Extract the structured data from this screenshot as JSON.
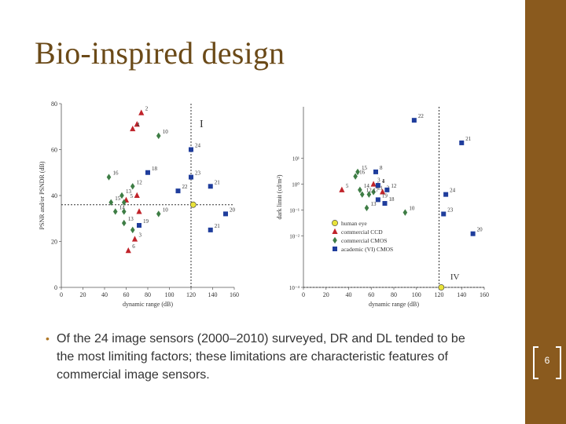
{
  "slide": {
    "title": "Bio-inspired design",
    "bullet": "Of the 24 image sensors (2000–2010) surveyed, DR and DL tended to be the most limiting factors; these limitations are characteristic features of commercial image sensors.",
    "page_number": "6"
  },
  "colors": {
    "title": "#6b4a18",
    "side_band": "#8a5a1e",
    "ccd": "#c0232a",
    "cmos": "#3e7d45",
    "vi_cmos": "#1f3d9c",
    "human_eye": "#e8e23a"
  },
  "chart_data": [
    {
      "type": "scatter",
      "title": "",
      "panel_label": "I",
      "xlabel": "dynamic range (dB)",
      "ylabel": "PSNR and/or PSNDR (dB)",
      "xlim": [
        0,
        160
      ],
      "ylim": [
        0,
        80
      ],
      "xticks": [
        "0",
        "20",
        "40",
        "60",
        "80",
        "100",
        "120",
        "140",
        "160"
      ],
      "yticks": [
        "0",
        "20",
        "40",
        "60",
        "80"
      ],
      "series": [
        {
          "name": "human eye",
          "marker": "circle",
          "points": [
            {
              "x": 122,
              "y": 36,
              "label": ""
            }
          ]
        },
        {
          "name": "commercial CCD",
          "marker": "triangle",
          "points": [
            {
              "x": 74,
              "y": 76,
              "label": "2"
            },
            {
              "x": 70,
              "y": 71,
              "label": ""
            },
            {
              "x": 66,
              "y": 69,
              "label": "4"
            },
            {
              "x": 70,
              "y": 40,
              "label": ""
            },
            {
              "x": 60,
              "y": 38,
              "label": "5"
            },
            {
              "x": 72,
              "y": 33,
              "label": ""
            },
            {
              "x": 68,
              "y": 21,
              "label": "3"
            },
            {
              "x": 62,
              "y": 16,
              "label": "6"
            }
          ]
        },
        {
          "name": "commercial CMOS",
          "marker": "diamond",
          "points": [
            {
              "x": 90,
              "y": 66,
              "label": "10"
            },
            {
              "x": 44,
              "y": 48,
              "label": "16"
            },
            {
              "x": 66,
              "y": 44,
              "label": "12"
            },
            {
              "x": 56,
              "y": 40,
              "label": "13"
            },
            {
              "x": 46,
              "y": 37,
              "label": "15"
            },
            {
              "x": 58,
              "y": 37,
              "label": ""
            },
            {
              "x": 50,
              "y": 33,
              "label": "14"
            },
            {
              "x": 58,
              "y": 33,
              "label": ""
            },
            {
              "x": 90,
              "y": 32,
              "label": "10"
            },
            {
              "x": 58,
              "y": 28,
              "label": "13"
            },
            {
              "x": 66,
              "y": 25,
              "label": ""
            }
          ]
        },
        {
          "name": "academic (VI) CMOS",
          "marker": "square",
          "points": [
            {
              "x": 120,
              "y": 60,
              "label": "24"
            },
            {
              "x": 80,
              "y": 50,
              "label": "18"
            },
            {
              "x": 120,
              "y": 48,
              "label": "23"
            },
            {
              "x": 138,
              "y": 44,
              "label": "21"
            },
            {
              "x": 108,
              "y": 42,
              "label": "22"
            },
            {
              "x": 72,
              "y": 27,
              "label": "19"
            },
            {
              "x": 152,
              "y": 32,
              "label": "20"
            },
            {
              "x": 138,
              "y": 25,
              "label": "21"
            }
          ]
        }
      ]
    },
    {
      "type": "scatter",
      "title": "",
      "panel_label": "IV",
      "xlabel": "dynamic range (dB)",
      "ylabel": "dark limit (cd/m²)",
      "y_scale": "log",
      "xlim": [
        0,
        160
      ],
      "ylim": [
        0.0001,
        1000
      ],
      "xticks": [
        "0",
        "20",
        "40",
        "60",
        "80",
        "100",
        "120",
        "140",
        "160"
      ],
      "yticks": [
        "10⁻⁴",
        "10⁻²",
        "10⁻¹",
        "10⁰",
        "10¹"
      ],
      "legend": [
        "human eye",
        "commercial CCD",
        "commercial CMOS",
        "academic (VI) CMOS"
      ],
      "legend_position": "bottom-center",
      "series": [
        {
          "name": "human eye",
          "marker": "circle",
          "points": [
            {
              "x": 122,
              "y": 0.0001,
              "label": ""
            }
          ]
        },
        {
          "name": "commercial CCD",
          "marker": "triangle",
          "points": [
            {
              "x": 34,
              "y": 0.6,
              "label": "5"
            },
            {
              "x": 62,
              "y": 1.0,
              "label": "3"
            },
            {
              "x": 66,
              "y": 0.9,
              "label": "4"
            },
            {
              "x": 70,
              "y": 0.5,
              "label": "2"
            }
          ]
        },
        {
          "name": "commercial CMOS",
          "marker": "diamond",
          "points": [
            {
              "x": 48,
              "y": 3.0,
              "label": "15"
            },
            {
              "x": 46,
              "y": 2.0,
              "label": "16"
            },
            {
              "x": 50,
              "y": 0.6,
              "label": "14"
            },
            {
              "x": 62,
              "y": 0.5,
              "label": "11"
            },
            {
              "x": 52,
              "y": 0.4,
              "label": "12"
            },
            {
              "x": 58,
              "y": 0.4,
              "label": "17"
            },
            {
              "x": 56,
              "y": 0.12,
              "label": "13"
            },
            {
              "x": 90,
              "y": 0.08,
              "label": "10"
            }
          ]
        },
        {
          "name": "academic (VI) CMOS",
          "marker": "square",
          "points": [
            {
              "x": 98,
              "y": 300,
              "label": "22"
            },
            {
              "x": 140,
              "y": 40,
              "label": "21"
            },
            {
              "x": 64,
              "y": 3.0,
              "label": "8"
            },
            {
              "x": 66,
              "y": 0.9,
              "label": "1"
            },
            {
              "x": 74,
              "y": 0.6,
              "label": "12"
            },
            {
              "x": 66,
              "y": 0.25,
              "label": "19"
            },
            {
              "x": 72,
              "y": 0.18,
              "label": "18"
            },
            {
              "x": 126,
              "y": 0.4,
              "label": "24"
            },
            {
              "x": 124,
              "y": 0.07,
              "label": "23"
            },
            {
              "x": 150,
              "y": 0.012,
              "label": "20"
            }
          ]
        }
      ]
    }
  ]
}
